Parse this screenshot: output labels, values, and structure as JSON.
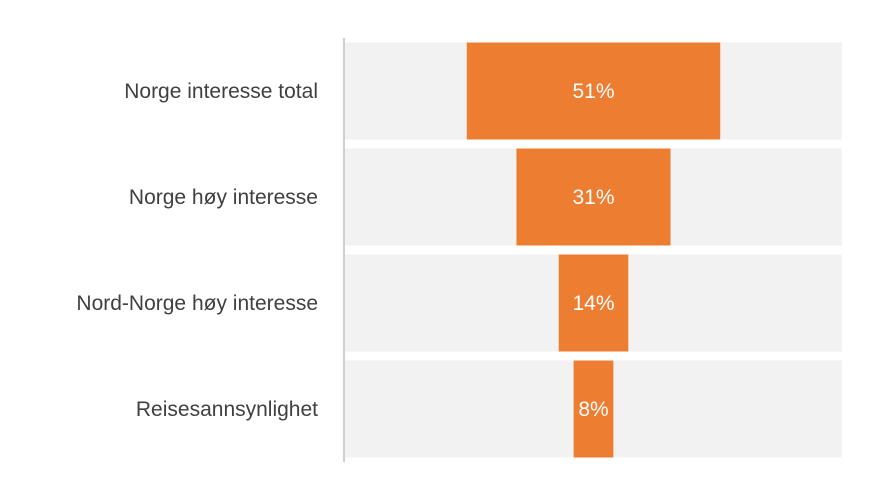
{
  "chart_data": {
    "type": "bar",
    "categories": [
      "Norge interesse total",
      "Norge høy interesse",
      "Nord-Norge høy interesse",
      "Reisesannsynlighet"
    ],
    "values": [
      51,
      31,
      14,
      8
    ],
    "data_labels": [
      "51%",
      "31%",
      "14%",
      "8%"
    ],
    "value_unit": "%",
    "xlim": [
      0,
      100
    ],
    "title": "",
    "xlabel": "",
    "ylabel": "",
    "grid": false,
    "legend": "none",
    "colors": {
      "bar": "#ED7D31",
      "band": "#F2F2F2",
      "axis": "#BFBFBF",
      "label_text": "#404040",
      "data_label_text": "#FFFFFF"
    }
  }
}
